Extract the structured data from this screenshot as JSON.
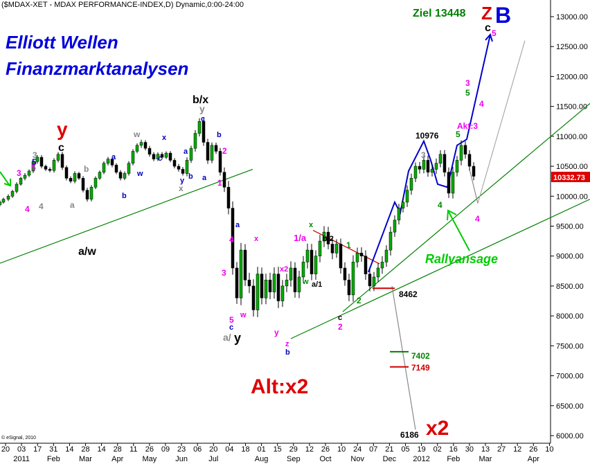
{
  "chart_data": {
    "type": "candlestick",
    "header": "($MDAX-XET - MDAX PERFORMANCE-INDEX,D) Dynamic,0:00-24:00",
    "title_lines": [
      "Elliott Wellen",
      "Finanzmarktanalysen"
    ],
    "credit": "© eSignal, 2010",
    "ylim": [
      6000,
      13500
    ],
    "y_ticks": [
      6000,
      6500,
      7000,
      7500,
      8000,
      8500,
      9000,
      9500,
      10000,
      10500,
      11000,
      11500,
      12000,
      12500,
      13000
    ],
    "y_tick_labels": [
      "6000.00",
      "6500.00",
      "7000.00",
      "7500.00",
      "8000.00",
      "8500.00",
      "9000.00",
      "9500.00",
      "10000.00",
      "10500.00",
      "11000.00",
      "11500.00",
      "12000.00",
      "12500.00",
      "13000.00"
    ],
    "last_price": "10332.73",
    "x_day_ticks": [
      "20",
      "03",
      "17",
      "31",
      "14",
      "28",
      "14",
      "28",
      "11",
      "26",
      "09",
      "23",
      "06",
      "20",
      "04",
      "18",
      "01",
      "15",
      "29",
      "12",
      "26",
      "10",
      "24",
      "07",
      "21",
      "05",
      "19",
      "02",
      "16",
      "30",
      "13",
      "27",
      "12",
      "26",
      "10"
    ],
    "x_months": [
      {
        "label": "2011",
        "day_index": 1
      },
      {
        "label": "Feb",
        "day_index": 3
      },
      {
        "label": "Mar",
        "day_index": 5
      },
      {
        "label": "Apr",
        "day_index": 7
      },
      {
        "label": "May",
        "day_index": 9
      },
      {
        "label": "Jun",
        "day_index": 11
      },
      {
        "label": "Jul",
        "day_index": 13
      },
      {
        "label": "Aug",
        "day_index": 16
      },
      {
        "label": "Sep",
        "day_index": 18
      },
      {
        "label": "Oct",
        "day_index": 20
      },
      {
        "label": "Nov",
        "day_index": 22
      },
      {
        "label": "Dec",
        "day_index": 24
      },
      {
        "label": "2012",
        "day_index": 26
      },
      {
        "label": "Feb",
        "day_index": 28
      },
      {
        "label": "Mar",
        "day_index": 30
      },
      {
        "label": "Apr",
        "day_index": 33
      }
    ],
    "series": [
      {
        "x": [
          0,
          5,
          12,
          18,
          24,
          30,
          36,
          42,
          48,
          54,
          60,
          66,
          72,
          78,
          84,
          90,
          96,
          102,
          108,
          114,
          120,
          126,
          132,
          138,
          144,
          150,
          156,
          162,
          168,
          174,
          180,
          186,
          192,
          198,
          204,
          210,
          216,
          222,
          228,
          234,
          240,
          246,
          252,
          258,
          264,
          270,
          276,
          282,
          288,
          294,
          300,
          306,
          312,
          318,
          324,
          330,
          336,
          342,
          348,
          354,
          360,
          366,
          372,
          378,
          384,
          390,
          396,
          402,
          408,
          414,
          420,
          426,
          432,
          438,
          444,
          450,
          456,
          462,
          468,
          474,
          480,
          486,
          492,
          498,
          504,
          510,
          516,
          522,
          528,
          534,
          540,
          546,
          552,
          558,
          564,
          570,
          576,
          582,
          588,
          594,
          600,
          606,
          612,
          618,
          624,
          630,
          636,
          642,
          648,
          654,
          660,
          666,
          672,
          678,
          684
        ],
        "close": [
          9900,
          9950,
          10000,
          10080,
          10200,
          10300,
          10350,
          10420,
          10580,
          10650,
          10500,
          10450,
          10430,
          10600,
          10700,
          10480,
          10300,
          10250,
          10380,
          10300,
          10100,
          9950,
          10150,
          10300,
          10400,
          10550,
          10620,
          10520,
          10400,
          10300,
          10380,
          10550,
          10750,
          10850,
          10900,
          10800,
          10700,
          10620,
          10700,
          10650,
          10720,
          10600,
          10500,
          10450,
          10380,
          10600,
          10800,
          11050,
          11250,
          10900,
          10600,
          10850,
          10750,
          10400,
          10150,
          9800,
          8800,
          8300,
          9100,
          8600,
          8500,
          8100,
          8700,
          8300,
          8600,
          8400,
          8700,
          8250,
          8500,
          8600,
          8800,
          8400,
          8650,
          8900,
          9100,
          8700,
          9000,
          9250,
          9400,
          9200,
          9050,
          9200,
          8800,
          8600,
          8350,
          8900,
          9050,
          9000,
          8700,
          8500,
          8650,
          8800,
          8900,
          9100,
          9400,
          9600,
          9800,
          9900,
          10100,
          10300,
          10500,
          10450,
          10600,
          10400,
          10450,
          10550,
          10700,
          10400,
          10050,
          10400,
          10600,
          10850,
          10700,
          10500,
          10333
        ],
        "range": [
          70,
          60,
          80,
          70,
          80,
          60,
          90,
          70,
          80,
          90,
          90,
          70,
          80,
          90,
          90,
          100,
          90,
          80,
          90,
          70,
          90,
          100,
          90,
          80,
          70,
          80,
          90,
          90,
          80,
          90,
          80,
          90,
          90,
          80,
          110,
          90,
          100,
          90,
          80,
          90,
          70,
          80,
          90,
          100,
          90,
          120,
          110,
          140,
          130,
          150,
          150,
          120,
          110,
          140,
          200,
          260,
          280,
          250,
          300,
          250,
          300,
          280,
          300,
          270,
          260,
          300,
          280,
          300,
          250,
          260,
          280,
          240,
          260,
          250,
          270,
          260,
          240,
          260,
          250,
          220,
          260,
          200,
          230,
          240,
          260,
          280,
          230,
          240,
          240,
          220,
          210,
          200,
          240,
          200,
          230,
          200,
          180,
          180,
          200,
          190,
          160,
          180,
          170,
          190,
          180,
          200,
          170,
          180,
          200,
          220,
          180,
          210,
          180,
          170,
          170
        ]
      }
    ],
    "trendlines": [
      {
        "name": "long-support",
        "color": "#008000",
        "from": [
          0,
          8880
        ],
        "to": [
          365,
          10450
        ]
      },
      {
        "name": "lower-channel",
        "color": "#008000",
        "from": [
          420,
          7620
        ],
        "to": [
          852,
          9950
        ]
      },
      {
        "name": "upper-channel",
        "color": "#008000",
        "from": [
          495,
          8070
        ],
        "to": [
          852,
          11550
        ]
      },
      {
        "name": "red-down",
        "color": "#cc0000",
        "from": [
          452,
          9430
        ],
        "to": [
          548,
          8870
        ]
      },
      {
        "name": "gray-forecast-a",
        "color": "#888888",
        "from": [
          678,
          10450
        ],
        "to": [
          690,
          9880
        ]
      },
      {
        "name": "gray-forecast-b",
        "color": "#aaaaaa",
        "from": [
          690,
          9880
        ],
        "to": [
          758,
          12600
        ]
      },
      {
        "name": "gray-down",
        "color": "#888888",
        "from": [
          566,
          8500
        ],
        "to": [
          600,
          6100
        ]
      },
      {
        "name": "blue-impulse",
        "color": "#0000cc",
        "points": [
          [
            532,
            8730
          ],
          [
            570,
            9900
          ],
          [
            578,
            9720
          ],
          [
            590,
            10420
          ],
          [
            612,
            10920
          ],
          [
            622,
            10600
          ],
          [
            632,
            10200
          ],
          [
            646,
            10150
          ],
          [
            660,
            10850
          ],
          [
            674,
            10950
          ],
          [
            708,
            12700
          ]
        ]
      }
    ],
    "levels": [
      {
        "label": "8462",
        "color": "#cc0000"
      },
      {
        "label": "7402",
        "color": "#008000"
      },
      {
        "label": "7149",
        "color": "#cc0000"
      },
      {
        "label": "6186",
        "color": "#000000"
      },
      {
        "label": "10976",
        "color": "#000000"
      }
    ],
    "annotations": [
      {
        "text": "Ziel 13448",
        "color": "#008000",
        "kind": "target"
      },
      {
        "text": "Z",
        "color": "#dd0000",
        "kind": "big"
      },
      {
        "text": "B",
        "color": "#0000dd",
        "kind": "big"
      },
      {
        "text": "c",
        "color": "#000000"
      },
      {
        "text": "5",
        "color": "#ee00ee"
      },
      {
        "text": "Alt:x2",
        "color": "#dd0000",
        "kind": "big"
      },
      {
        "text": "x2",
        "color": "#dd0000",
        "kind": "big"
      },
      {
        "text": "Rallyansage",
        "color": "#00cc00",
        "kind": "callout"
      },
      {
        "text": "Akt:3",
        "color": "#ee00ee"
      },
      {
        "text": "b/x",
        "color": "#000000"
      },
      {
        "text": "a/w",
        "color": "#000000"
      },
      {
        "text": "a/",
        "color": "#888888"
      },
      {
        "text": "y",
        "color": "#000000"
      },
      {
        "text": "1/a",
        "color": "#ee00ee"
      },
      {
        "text": "b/2",
        "color": "#000000"
      },
      {
        "text": "a/1",
        "color": "#000000"
      }
    ],
    "grid": false,
    "legend": "none"
  }
}
